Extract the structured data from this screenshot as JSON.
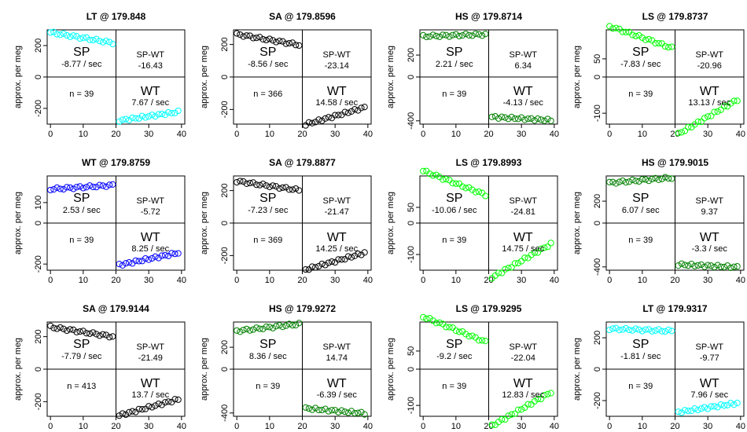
{
  "chart_data": [
    {
      "type": "scatter",
      "title": "LT @ 179.848",
      "ylabel": "approx. per meg",
      "color": "#00ffff",
      "xlim": [
        -1,
        41
      ],
      "ylim": [
        -300,
        300
      ],
      "xticks": [
        0,
        10,
        20,
        30,
        40
      ],
      "yticks": [
        -200,
        0,
        200
      ],
      "split_x": 20,
      "sp_mean": 250,
      "wt_mean": -250,
      "sp_slope": -8.77,
      "wt_slope": 7.67,
      "sp_label": "SP",
      "sp_rate": "-8.77 / sec",
      "diff_label": "SP-WT",
      "diff_value": "-16.43",
      "n_label": "n = 39",
      "wt_label": "WT",
      "wt_rate": "7.67 / sec"
    },
    {
      "type": "scatter",
      "title": "SA @ 179.8596",
      "ylabel": "approx. per meg",
      "color": "#000000",
      "xlim": [
        -1,
        41
      ],
      "ylim": [
        -290,
        290
      ],
      "xticks": [
        0,
        10,
        20,
        30,
        40
      ],
      "yticks": [
        -200,
        0,
        200
      ],
      "split_x": 20,
      "sp_mean": 230,
      "wt_mean": -240,
      "sp_slope": -8.56,
      "wt_slope": 14.58,
      "sp_label": "SP",
      "sp_rate": "-8.56 / sec",
      "diff_label": "SP-WT",
      "diff_value": "-23.14",
      "n_label": "n = 366",
      "wt_label": "WT",
      "wt_rate": "14.58 / sec"
    },
    {
      "type": "scatter",
      "title": "HS @ 179.8714",
      "ylabel": "approx. per meg",
      "color": "#008000",
      "xlim": [
        -1,
        41
      ],
      "ylim": [
        -430,
        430
      ],
      "xticks": [
        0,
        10,
        20,
        30,
        40
      ],
      "yticks": [
        -400,
        0,
        200
      ],
      "split_x": 20,
      "sp_mean": 380,
      "wt_mean": -380,
      "sp_slope": 2.21,
      "wt_slope": -4.13,
      "sp_label": "SP",
      "sp_rate": "2.21 / sec",
      "diff_label": "SP-WT",
      "diff_value": "6.34",
      "n_label": "n = 39",
      "wt_label": "WT",
      "wt_rate": "-4.13 / sec"
    },
    {
      "type": "scatter",
      "title": "LS @ 179.8737",
      "ylabel": "approx. per meg",
      "color": "#00ff00",
      "xlim": [
        -1,
        41
      ],
      "ylim": [
        -130,
        130
      ],
      "xticks": [
        0,
        10,
        20,
        30,
        40
      ],
      "yticks": [
        -100,
        0,
        50
      ],
      "split_x": 20,
      "sp_mean": 110,
      "wt_mean": -110,
      "sp_slope": -7.83,
      "wt_slope": 13.13,
      "sp_label": "SP",
      "sp_rate": "-7.83 / sec",
      "diff_label": "SP-WT",
      "diff_value": "-20.96",
      "n_label": "n = 39",
      "wt_label": "WT",
      "wt_rate": "13.13 / sec"
    },
    {
      "type": "scatter",
      "title": "WT @ 179.8759",
      "ylabel": "approx. per meg",
      "color": "#0000ff",
      "xlim": [
        -1,
        41
      ],
      "ylim": [
        -230,
        230
      ],
      "xticks": [
        0,
        10,
        20,
        30,
        40
      ],
      "yticks": [
        -200,
        0,
        100
      ],
      "split_x": 20,
      "sp_mean": 175,
      "wt_mean": -175,
      "sp_slope": 2.53,
      "wt_slope": 8.25,
      "sp_label": "SP",
      "sp_rate": "2.53 / sec",
      "diff_label": "SP-WT",
      "diff_value": "-5.72",
      "n_label": "n = 39",
      "wt_label": "WT",
      "wt_rate": "8.25 / sec"
    },
    {
      "type": "scatter",
      "title": "SA @ 179.8877",
      "ylabel": "approx. per meg",
      "color": "#000000",
      "xlim": [
        -1,
        41
      ],
      "ylim": [
        -290,
        290
      ],
      "xticks": [
        0,
        10,
        20,
        30,
        40
      ],
      "yticks": [
        -200,
        0,
        200
      ],
      "split_x": 20,
      "sp_mean": 230,
      "wt_mean": -235,
      "sp_slope": -7.23,
      "wt_slope": 14.25,
      "sp_label": "SP",
      "sp_rate": "-7.23 / sec",
      "diff_label": "SP-WT",
      "diff_value": "-21.47",
      "n_label": "n = 369",
      "wt_label": "WT",
      "wt_rate": "14.25 / sec"
    },
    {
      "type": "scatter",
      "title": "LS @ 179.8993",
      "ylabel": "approx. per meg",
      "color": "#00ff00",
      "xlim": [
        -1,
        41
      ],
      "ylim": [
        -150,
        150
      ],
      "xticks": [
        0,
        10,
        20,
        30,
        40
      ],
      "yticks": [
        -100,
        0,
        50
      ],
      "split_x": 20,
      "sp_mean": 128,
      "wt_mean": -120,
      "sp_slope": -10.06,
      "wt_slope": 14.75,
      "sp_label": "SP",
      "sp_rate": "-10.06 / sec",
      "diff_label": "SP-WT",
      "diff_value": "-24.81",
      "n_label": "n = 39",
      "wt_label": "WT",
      "wt_rate": "14.75 / sec"
    },
    {
      "type": "scatter",
      "title": "HS @ 179.9015",
      "ylabel": "approx. per meg",
      "color": "#008000",
      "xlim": [
        -1,
        41
      ],
      "ylim": [
        -430,
        430
      ],
      "xticks": [
        0,
        10,
        20,
        30,
        40
      ],
      "yticks": [
        -400,
        0,
        200
      ],
      "split_x": 20,
      "sp_mean": 390,
      "wt_mean": -390,
      "sp_slope": 6.07,
      "wt_slope": -3.3,
      "sp_label": "SP",
      "sp_rate": "6.07 / sec",
      "diff_label": "SP-WT",
      "diff_value": "9.37",
      "n_label": "n = 39",
      "wt_label": "WT",
      "wt_rate": "-3.3 / sec"
    },
    {
      "type": "scatter",
      "title": "SA @ 179.9144",
      "ylabel": "approx. per meg",
      "color": "#000000",
      "xlim": [
        -1,
        41
      ],
      "ylim": [
        -290,
        290
      ],
      "xticks": [
        0,
        10,
        20,
        30,
        40
      ],
      "yticks": [
        -200,
        0,
        200
      ],
      "split_x": 20,
      "sp_mean": 230,
      "wt_mean": -235,
      "sp_slope": -7.79,
      "wt_slope": 13.7,
      "sp_label": "SP",
      "sp_rate": "-7.79 / sec",
      "diff_label": "SP-WT",
      "diff_value": "-21.49",
      "n_label": "n = 413",
      "wt_label": "WT",
      "wt_rate": "13.7 / sec"
    },
    {
      "type": "scatter",
      "title": "HS @ 179.9272",
      "ylabel": "approx. per meg",
      "color": "#008000",
      "xlim": [
        -1,
        41
      ],
      "ylim": [
        -430,
        430
      ],
      "xticks": [
        0,
        10,
        20,
        30,
        40
      ],
      "yticks": [
        -400,
        0,
        200
      ],
      "split_x": 20,
      "sp_mean": 380,
      "wt_mean": -380,
      "sp_slope": 8.36,
      "wt_slope": -6.39,
      "sp_label": "SP",
      "sp_rate": "8.36 / sec",
      "diff_label": "SP-WT",
      "diff_value": "14.74",
      "n_label": "n = 39",
      "wt_label": "WT",
      "wt_rate": "-6.39 / sec"
    },
    {
      "type": "scatter",
      "title": "LS @ 179.9295",
      "ylabel": "approx. per meg",
      "color": "#00ff00",
      "xlim": [
        -1,
        41
      ],
      "ylim": [
        -130,
        130
      ],
      "xticks": [
        0,
        10,
        20,
        30,
        40
      ],
      "yticks": [
        -100,
        0,
        50
      ],
      "split_x": 20,
      "sp_mean": 110,
      "wt_mean": -110,
      "sp_slope": -9.2,
      "wt_slope": 12.83,
      "sp_label": "SP",
      "sp_rate": "-9.2 / sec",
      "diff_label": "SP-WT",
      "diff_value": "-22.04",
      "n_label": "n = 39",
      "wt_label": "WT",
      "wt_rate": "12.83 / sec"
    },
    {
      "type": "scatter",
      "title": "LT @ 179.9317",
      "ylabel": "approx. per meg",
      "color": "#00ffff",
      "xlim": [
        -1,
        41
      ],
      "ylim": [
        -300,
        300
      ],
      "xticks": [
        0,
        10,
        20,
        30,
        40
      ],
      "yticks": [
        -200,
        0,
        200
      ],
      "split_x": 20,
      "sp_mean": 250,
      "wt_mean": -245,
      "sp_slope": -1.81,
      "wt_slope": 7.96,
      "sp_label": "SP",
      "sp_rate": "-1.81 / sec",
      "diff_label": "SP-WT",
      "diff_value": "-9.77",
      "n_label": "n = 39",
      "wt_label": "WT",
      "wt_rate": "7.96 / sec"
    }
  ]
}
